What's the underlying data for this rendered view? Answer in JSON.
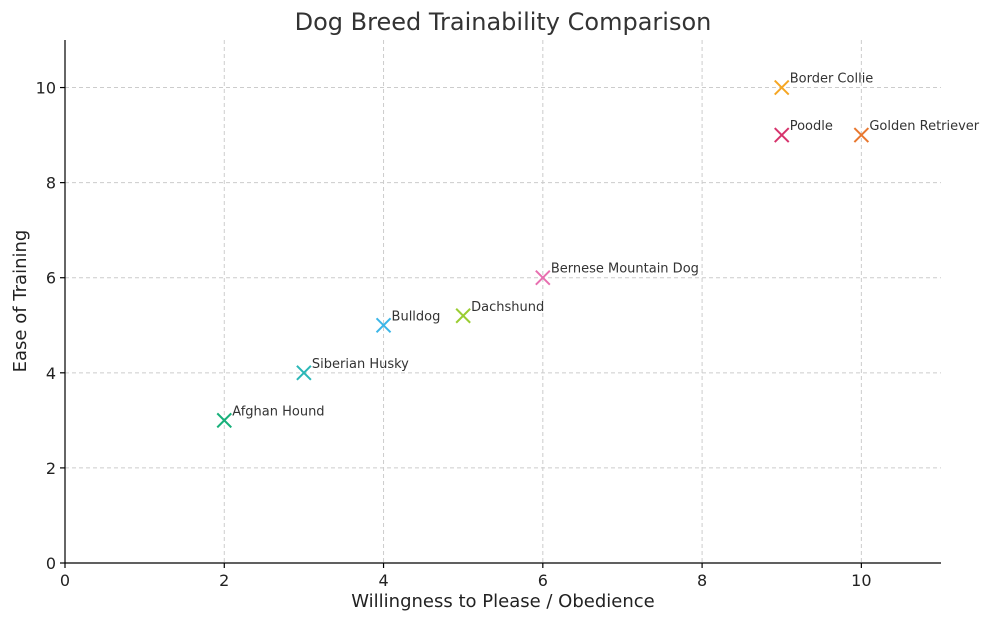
{
  "chart_data": {
    "type": "scatter",
    "title": "Dog Breed Trainability Comparison",
    "xlabel": "Willingness to Please / Obedience",
    "ylabel": "Ease of Training",
    "xlim": [
      0,
      11
    ],
    "ylim": [
      0,
      11
    ],
    "xticks": [
      0,
      2,
      4,
      6,
      8,
      10
    ],
    "yticks": [
      0,
      2,
      4,
      6,
      8,
      10
    ],
    "grid": true,
    "marker": "x",
    "points": [
      {
        "label": "Border Collie",
        "x": 9,
        "y": 10,
        "color": "#f5a623"
      },
      {
        "label": "Poodle",
        "x": 9,
        "y": 9,
        "color": "#d6336c"
      },
      {
        "label": "Golden Retriever",
        "x": 10,
        "y": 9,
        "color": "#e8772e"
      },
      {
        "label": "Bernese Mountain Dog",
        "x": 6,
        "y": 6,
        "color": "#e86fb0"
      },
      {
        "label": "Dachshund",
        "x": 5,
        "y": 5.2,
        "color": "#9acd32"
      },
      {
        "label": "Bulldog",
        "x": 4,
        "y": 5,
        "color": "#3bb6e8"
      },
      {
        "label": "Siberian Husky",
        "x": 3,
        "y": 4,
        "color": "#2ab7b7"
      },
      {
        "label": "Afghan Hound",
        "x": 2,
        "y": 3,
        "color": "#18b07a"
      }
    ]
  }
}
